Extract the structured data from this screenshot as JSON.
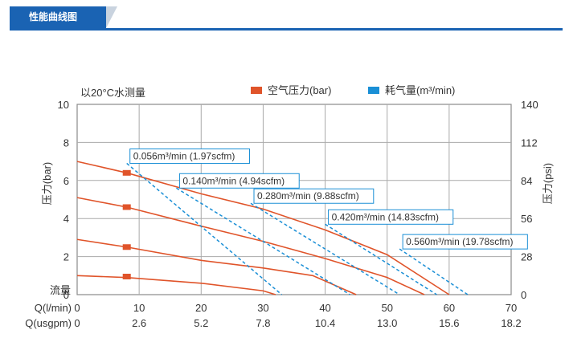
{
  "section": {
    "title": "性能曲线图"
  },
  "colors": {
    "accent": "#1a63b3",
    "pressure": "#e0542a",
    "air": "#1a8fd6",
    "grid": "#8a8a8a",
    "text": "#333333"
  },
  "chart_data": {
    "type": "line",
    "note": "以20°C水测量",
    "legend": [
      {
        "label": "空气压力(bar)",
        "color": "#e0542a"
      },
      {
        "label": "耗气量(m³/min)",
        "color": "#1a8fd6"
      }
    ],
    "ylabel_left": "压力(bar)",
    "ylabel_right": "压力(psi)",
    "flow_label": "流量",
    "x_row_labels": [
      "Q(l/min)",
      "Q(usgpm)"
    ],
    "xlim": [
      0,
      70
    ],
    "ylim": [
      0,
      10
    ],
    "x_ticks": [
      "0",
      "10",
      "20",
      "30",
      "40",
      "50",
      "60",
      "70"
    ],
    "x_ticks_usgpm": [
      "0",
      "2.6",
      "5.2",
      "7.8",
      "10.4",
      "13.0",
      "15.6",
      "18.2"
    ],
    "y_ticks": [
      "0",
      "2",
      "4",
      "6",
      "8",
      "10"
    ],
    "y_ticks_psi": [
      "0",
      "28",
      "56",
      "84",
      "112",
      "140"
    ],
    "pressure_curves": [
      {
        "points": [
          [
            0,
            7.0
          ],
          [
            8,
            6.4
          ],
          [
            20,
            5.3
          ],
          [
            30,
            4.5
          ],
          [
            40,
            3.4
          ],
          [
            50,
            2.1
          ],
          [
            60,
            0
          ]
        ]
      },
      {
        "points": [
          [
            0,
            5.1
          ],
          [
            8,
            4.6
          ],
          [
            20,
            3.6
          ],
          [
            30,
            2.8
          ],
          [
            40,
            1.9
          ],
          [
            50,
            0.9
          ],
          [
            56,
            0
          ]
        ]
      },
      {
        "points": [
          [
            0,
            2.9
          ],
          [
            8,
            2.5
          ],
          [
            20,
            1.8
          ],
          [
            30,
            1.4
          ],
          [
            38,
            1.0
          ],
          [
            45,
            0
          ]
        ]
      },
      {
        "points": [
          [
            0,
            1.0
          ],
          [
            8,
            0.9
          ],
          [
            20,
            0.6
          ],
          [
            30,
            0.2
          ],
          [
            32,
            0
          ]
        ]
      }
    ],
    "markers": [
      [
        8,
        6.4
      ],
      [
        8,
        4.6
      ],
      [
        8,
        2.5
      ],
      [
        8,
        0.95
      ]
    ],
    "air_curves": [
      {
        "label": "0.056m³/min (1.97scfm)",
        "points": [
          [
            8,
            6.9
          ],
          [
            33,
            0
          ]
        ]
      },
      {
        "label": "0.140m³/min (4.94scfm)",
        "points": [
          [
            16,
            5.6
          ],
          [
            44,
            0
          ]
        ]
      },
      {
        "label": "0.280m³/min (9.88scfm)",
        "points": [
          [
            28,
            4.8
          ],
          [
            52,
            0
          ]
        ]
      },
      {
        "label": "0.420m³/min (14.83scfm)",
        "points": [
          [
            40,
            3.7
          ],
          [
            58,
            0
          ]
        ]
      },
      {
        "label": "0.560m³/min (19.78scfm)",
        "points": [
          [
            52,
            2.4
          ],
          [
            63,
            0
          ]
        ]
      }
    ]
  }
}
